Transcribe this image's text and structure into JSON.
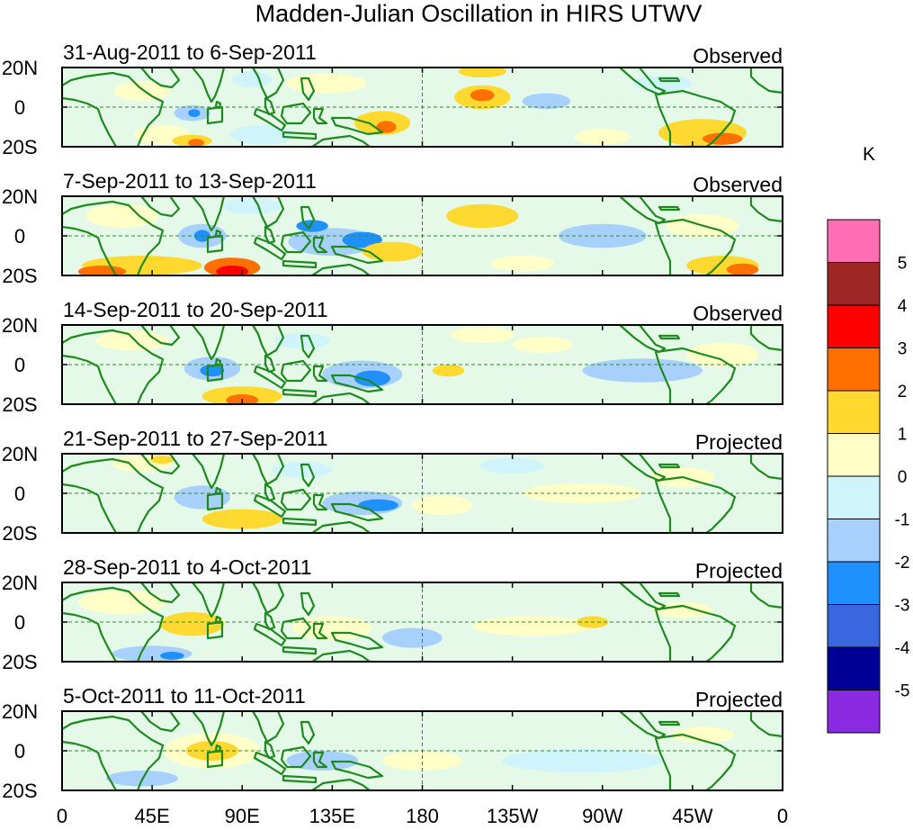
{
  "title": "Madden-Julian Oscillation in HIRS UTWV",
  "colors": {
    "land": "#1e8a1e",
    "zero_line": "#2e8b2e",
    "background_field": "#ffffd0"
  },
  "lat_labels": [
    "20N",
    "0",
    "20S"
  ],
  "lon_labels": [
    "0",
    "45E",
    "90E",
    "135E",
    "180",
    "135W",
    "90W",
    "45W",
    "0"
  ],
  "colorbar": {
    "unit": "K",
    "ticks": [
      "5",
      "4",
      "3",
      "2",
      "1",
      "0",
      "-1",
      "-2",
      "-3",
      "-4",
      "-5"
    ],
    "bins": [
      {
        "label": "> 5",
        "color": "#ff6eb4"
      },
      {
        "label": "4 to 5",
        "color": "#9e2626"
      },
      {
        "label": "3 to 4",
        "color": "#ff0000"
      },
      {
        "label": "2 to 3",
        "color": "#ff7000"
      },
      {
        "label": "1 to 2",
        "color": "#ffd830"
      },
      {
        "label": "0 to 1",
        "color": "#ffffc8"
      },
      {
        "label": "-1 to 0",
        "color": "#d0f4fc"
      },
      {
        "label": "-2 to -1",
        "color": "#a8d0fc"
      },
      {
        "label": "-3 to -2",
        "color": "#2090ff"
      },
      {
        "label": "-4 to -3",
        "color": "#3a66e0"
      },
      {
        "label": "-5 to -4",
        "color": "#000096"
      },
      {
        "label": "< -5",
        "color": "#8a2be2"
      }
    ]
  },
  "panels": [
    {
      "period": "31-Aug-2011 to 6-Sep-2011",
      "status": "Observed",
      "anomalies": [
        {
          "lon": 40,
          "lat": 8,
          "rlon": 14,
          "rlat": 5,
          "v": 0.6
        },
        {
          "lon": 65,
          "lat": -3,
          "rlon": 9,
          "rlat": 4,
          "v": -1.6
        },
        {
          "lon": 66,
          "lat": -3,
          "rlon": 3,
          "rlat": 2,
          "v": -2.3
        },
        {
          "lon": 50,
          "lat": -14,
          "rlon": 14,
          "rlat": 5,
          "v": 0.7
        },
        {
          "lon": 65,
          "lat": -17,
          "rlon": 10,
          "rlat": 3,
          "v": 1.7
        },
        {
          "lon": 67,
          "lat": -18,
          "rlon": 4,
          "rlat": 2,
          "v": 2.4
        },
        {
          "lon": 100,
          "lat": -14,
          "rlon": 16,
          "rlat": 5,
          "v": -0.9
        },
        {
          "lon": 95,
          "lat": 14,
          "rlon": 10,
          "rlat": 4,
          "v": -0.7
        },
        {
          "lon": 160,
          "lat": -8,
          "rlon": 14,
          "rlat": 6,
          "v": 1.6
        },
        {
          "lon": 162,
          "lat": -10,
          "rlon": 5,
          "rlat": 3,
          "v": 2.4
        },
        {
          "lon": 210,
          "lat": 5,
          "rlon": 14,
          "rlat": 6,
          "v": 1.6
        },
        {
          "lon": 210,
          "lat": 6,
          "rlon": 6,
          "rlat": 3,
          "v": 2.3
        },
        {
          "lon": 210,
          "lat": 18,
          "rlon": 12,
          "rlat": 3,
          "v": 1.5
        },
        {
          "lon": 242,
          "lat": 3,
          "rlon": 12,
          "rlat": 4,
          "v": -1.3
        },
        {
          "lon": 300,
          "lat": 12,
          "rlon": 15,
          "rlat": 4,
          "v": -0.8
        },
        {
          "lon": 320,
          "lat": -13,
          "rlon": 22,
          "rlat": 7,
          "v": 1.5
        },
        {
          "lon": 330,
          "lat": -16,
          "rlon": 10,
          "rlat": 3,
          "v": 2.5
        },
        {
          "lon": 132,
          "lat": 12,
          "rlon": 20,
          "rlat": 5,
          "v": 0.6
        },
        {
          "lon": 270,
          "lat": -15,
          "rlon": 14,
          "rlat": 4,
          "v": 0.6
        }
      ]
    },
    {
      "period": "7-Sep-2011 to 13-Sep-2011",
      "status": "Observed",
      "anomalies": [
        {
          "lon": 30,
          "lat": 10,
          "rlon": 18,
          "rlat": 6,
          "v": 0.7
        },
        {
          "lon": 70,
          "lat": 0,
          "rlon": 12,
          "rlat": 6,
          "v": -1.5
        },
        {
          "lon": 70,
          "lat": 0,
          "rlon": 4,
          "rlat": 3,
          "v": -2.4
        },
        {
          "lon": 40,
          "lat": -15,
          "rlon": 30,
          "rlat": 5,
          "v": 1.4
        },
        {
          "lon": 85,
          "lat": -16,
          "rlon": 14,
          "rlat": 5,
          "v": 2.4
        },
        {
          "lon": 85,
          "lat": -18,
          "rlon": 8,
          "rlat": 3,
          "v": 3.3
        },
        {
          "lon": 20,
          "lat": -18,
          "rlon": 12,
          "rlat": 3,
          "v": 2.3
        },
        {
          "lon": 135,
          "lat": -3,
          "rlon": 22,
          "rlat": 7,
          "v": -1.3
        },
        {
          "lon": 150,
          "lat": -2,
          "rlon": 10,
          "rlat": 4,
          "v": -2.3
        },
        {
          "lon": 125,
          "lat": 5,
          "rlon": 8,
          "rlat": 3,
          "v": -2.2
        },
        {
          "lon": 165,
          "lat": -8,
          "rlon": 15,
          "rlat": 5,
          "v": 1.3
        },
        {
          "lon": 210,
          "lat": 10,
          "rlon": 18,
          "rlat": 6,
          "v": 1.3
        },
        {
          "lon": 270,
          "lat": 0,
          "rlon": 22,
          "rlat": 6,
          "v": -1.2
        },
        {
          "lon": 320,
          "lat": 5,
          "rlon": 18,
          "rlat": 6,
          "v": 0.6
        },
        {
          "lon": 330,
          "lat": -15,
          "rlon": 18,
          "rlat": 5,
          "v": 1.6
        },
        {
          "lon": 340,
          "lat": -17,
          "rlon": 8,
          "rlat": 3,
          "v": 2.3
        },
        {
          "lon": 95,
          "lat": 15,
          "rlon": 15,
          "rlat": 4,
          "v": -0.8
        },
        {
          "lon": 230,
          "lat": -14,
          "rlon": 16,
          "rlat": 4,
          "v": 0.6
        }
      ]
    },
    {
      "period": "14-Sep-2011 to 20-Sep-2011",
      "status": "Observed",
      "anomalies": [
        {
          "lon": 35,
          "lat": 12,
          "rlon": 18,
          "rlat": 5,
          "v": 0.6
        },
        {
          "lon": 75,
          "lat": -2,
          "rlon": 14,
          "rlat": 6,
          "v": -1.5
        },
        {
          "lon": 75,
          "lat": -3,
          "rlon": 6,
          "rlat": 3,
          "v": -2.3
        },
        {
          "lon": 90,
          "lat": -16,
          "rlon": 20,
          "rlat": 5,
          "v": 1.5
        },
        {
          "lon": 90,
          "lat": -18,
          "rlon": 8,
          "rlat": 3,
          "v": 2.3
        },
        {
          "lon": 150,
          "lat": -5,
          "rlon": 20,
          "rlat": 7,
          "v": -1.5
        },
        {
          "lon": 155,
          "lat": -7,
          "rlon": 9,
          "rlat": 4,
          "v": -2.4
        },
        {
          "lon": 193,
          "lat": -3,
          "rlon": 8,
          "rlat": 3,
          "v": 1.4
        },
        {
          "lon": 210,
          "lat": 15,
          "rlon": 16,
          "rlat": 4,
          "v": 0.6
        },
        {
          "lon": 290,
          "lat": -3,
          "rlon": 30,
          "rlat": 6,
          "v": -1.2
        },
        {
          "lon": 240,
          "lat": 10,
          "rlon": 15,
          "rlat": 4,
          "v": 0.6
        },
        {
          "lon": 120,
          "lat": 12,
          "rlon": 14,
          "rlat": 4,
          "v": -0.7
        },
        {
          "lon": 330,
          "lat": 5,
          "rlon": 18,
          "rlat": 6,
          "v": 0.6
        }
      ]
    },
    {
      "period": "21-Sep-2011 to 27-Sep-2011",
      "status": "Projected",
      "anomalies": [
        {
          "lon": 40,
          "lat": 15,
          "rlon": 15,
          "rlat": 4,
          "v": 0.8
        },
        {
          "lon": 50,
          "lat": 17,
          "rlon": 6,
          "rlat": 2,
          "v": 1.4
        },
        {
          "lon": 70,
          "lat": -2,
          "rlon": 14,
          "rlat": 6,
          "v": -1.4
        },
        {
          "lon": 90,
          "lat": -13,
          "rlon": 20,
          "rlat": 5,
          "v": 1.3
        },
        {
          "lon": 150,
          "lat": -5,
          "rlon": 20,
          "rlat": 6,
          "v": -1.4
        },
        {
          "lon": 158,
          "lat": -6,
          "rlon": 10,
          "rlat": 3,
          "v": -2.4
        },
        {
          "lon": 190,
          "lat": -6,
          "rlon": 15,
          "rlat": 5,
          "v": 0.6
        },
        {
          "lon": 260,
          "lat": 0,
          "rlon": 30,
          "rlat": 5,
          "v": 0.6
        },
        {
          "lon": 310,
          "lat": 8,
          "rlon": 16,
          "rlat": 5,
          "v": 0.5
        },
        {
          "lon": 120,
          "lat": 12,
          "rlon": 15,
          "rlat": 4,
          "v": -0.7
        },
        {
          "lon": 225,
          "lat": 14,
          "rlon": 16,
          "rlat": 4,
          "v": -0.6
        }
      ]
    },
    {
      "period": "28-Sep-2011 to 4-Oct-2011",
      "status": "Projected",
      "anomalies": [
        {
          "lon": 30,
          "lat": 10,
          "rlon": 22,
          "rlat": 6,
          "v": 0.5
        },
        {
          "lon": 65,
          "lat": -1,
          "rlon": 16,
          "rlat": 6,
          "v": 1.3
        },
        {
          "lon": 45,
          "lat": -16,
          "rlon": 20,
          "rlat": 4,
          "v": -1.2
        },
        {
          "lon": 55,
          "lat": -17,
          "rlon": 6,
          "rlat": 2,
          "v": -2.3
        },
        {
          "lon": 135,
          "lat": -3,
          "rlon": 20,
          "rlat": 6,
          "v": 0.6
        },
        {
          "lon": 175,
          "lat": -8,
          "rlon": 15,
          "rlat": 5,
          "v": -1.2
        },
        {
          "lon": 235,
          "lat": -2,
          "rlon": 30,
          "rlat": 5,
          "v": 0.5
        },
        {
          "lon": 265,
          "lat": 0,
          "rlon": 8,
          "rlat": 3,
          "v": 1.3
        },
        {
          "lon": 310,
          "lat": 6,
          "rlon": 15,
          "rlat": 4,
          "v": 0.5
        }
      ]
    },
    {
      "period": "5-Oct-2011 to 11-Oct-2011",
      "status": "Projected",
      "anomalies": [
        {
          "lon": 75,
          "lat": 0,
          "rlon": 24,
          "rlat": 9,
          "v": 0.7
        },
        {
          "lon": 75,
          "lat": 0,
          "rlon": 13,
          "rlat": 5,
          "v": 1.4
        },
        {
          "lon": 40,
          "lat": -14,
          "rlon": 18,
          "rlat": 4,
          "v": -1.2
        },
        {
          "lon": 130,
          "lat": -5,
          "rlon": 18,
          "rlat": 5,
          "v": -1.2
        },
        {
          "lon": 180,
          "lat": -5,
          "rlon": 20,
          "rlat": 5,
          "v": 0.5
        },
        {
          "lon": 260,
          "lat": -5,
          "rlon": 40,
          "rlat": 6,
          "v": -0.7
        },
        {
          "lon": 320,
          "lat": 8,
          "rlon": 16,
          "rlat": 4,
          "v": 0.5
        }
      ]
    }
  ]
}
